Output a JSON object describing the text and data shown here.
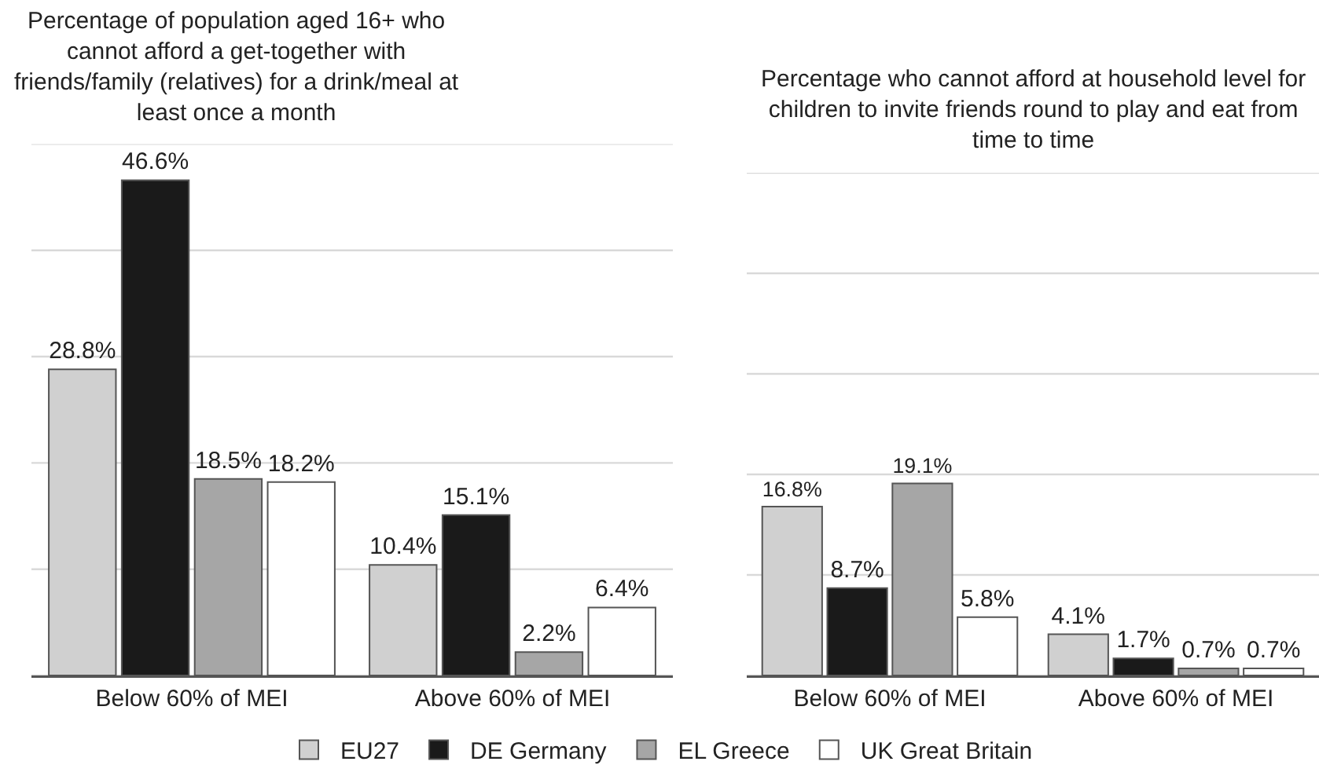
{
  "chart_data": [
    {
      "type": "bar",
      "title": "Percentage of population aged 16+ who cannot afford a get-together with friends/family (relatives) for a drink/meal at least once a month",
      "categories": [
        "Below 60% of MEI",
        "Above 60% of MEI"
      ],
      "series": [
        {
          "name": "EU27",
          "color": "#d0d0d0",
          "values": [
            28.8,
            10.4
          ],
          "value_labels": [
            "28.8%",
            "10.4%"
          ]
        },
        {
          "name": "DE Germany",
          "color": "#1a1a1a",
          "values": [
            46.6,
            15.1
          ],
          "value_labels": [
            "46.6%",
            "15.1%"
          ]
        },
        {
          "name": "EL Greece",
          "color": "#a6a6a6",
          "values": [
            18.5,
            2.2
          ],
          "value_labels": [
            "18.5%",
            "2.2%"
          ]
        },
        {
          "name": "UK Great Britain",
          "color": "#ffffff",
          "values": [
            18.2,
            6.4
          ],
          "value_labels": [
            "18.2%",
            "6.4%"
          ]
        }
      ],
      "ylim": [
        0,
        50
      ],
      "yticks": [
        {
          "value": 0,
          "label": null
        },
        {
          "value": 10,
          "label": null
        },
        {
          "value": 20,
          "label": null
        },
        {
          "value": 30,
          "label": null
        },
        {
          "value": 40,
          "label": null
        },
        {
          "value": 50,
          "label": null
        }
      ],
      "tick_labels": "x",
      "grid": "y",
      "legend": "bottom"
    },
    {
      "type": "bar",
      "title": "Percentage who cannot afford at household level for children to invite friends round to play and eat from time to time",
      "categories": [
        "Below 60% of MEI",
        "Above 60% of MEI"
      ],
      "series": [
        {
          "name": "EU27",
          "color": "#d0d0d0",
          "values": [
            16.8,
            4.1
          ],
          "value_labels": [
            "16.8%",
            "4.1%"
          ]
        },
        {
          "name": "DE Germany",
          "color": "#1a1a1a",
          "values": [
            8.7,
            1.7
          ],
          "value_labels": [
            "8.7%",
            "1.7%"
          ]
        },
        {
          "name": "EL Greece",
          "color": "#a6a6a6",
          "values": [
            19.1,
            0.7
          ],
          "value_labels": [
            "19.1%",
            "0.7%"
          ]
        },
        {
          "name": "UK Great Britain",
          "color": "#ffffff",
          "values": [
            5.8,
            0.7
          ],
          "value_labels": [
            "5.8%",
            "0.7%"
          ]
        }
      ],
      "ylim": [
        0,
        50
      ],
      "yticks": [
        {
          "value": 0,
          "label": null
        },
        {
          "value": 10,
          "label": null
        },
        {
          "value": 20,
          "label": null
        },
        {
          "value": 30,
          "label": null
        },
        {
          "value": 40,
          "label": null
        },
        {
          "value": 50,
          "label": null
        }
      ],
      "tick_labels": "x",
      "grid": "y",
      "legend": "bottom"
    }
  ]
}
